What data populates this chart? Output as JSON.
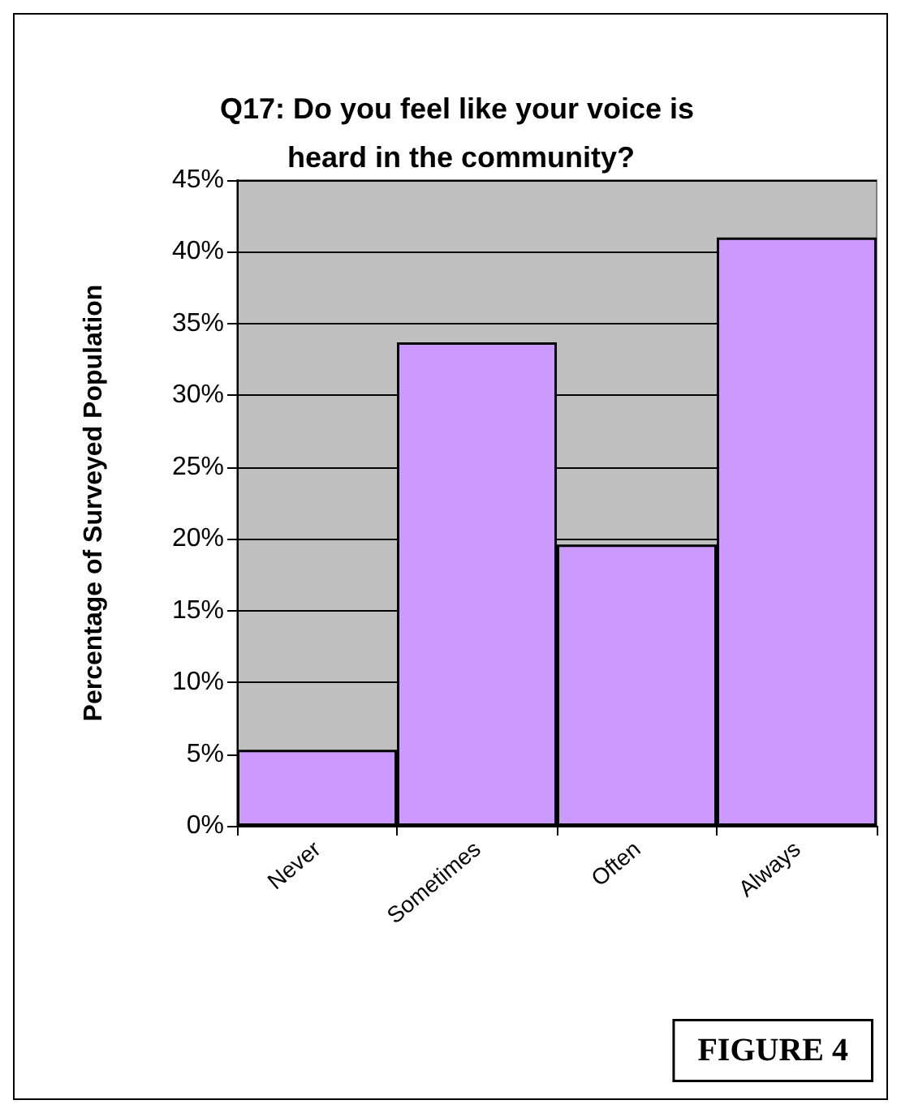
{
  "chart_data": {
    "type": "bar",
    "title": "Q17: Do you feel like your voice is heard in the community?",
    "ylabel": "Percentage of Surveyed Population",
    "categories": [
      "Never",
      "Sometimes",
      "Often",
      "Always"
    ],
    "values": [
      5.3,
      33.7,
      19.6,
      41.0
    ],
    "color": "#cc99ff",
    "ylim": [
      0,
      45
    ],
    "yticks": [
      {
        "value": 0,
        "label": "0%"
      },
      {
        "value": 5,
        "label": "5%"
      },
      {
        "value": 10,
        "label": "10%"
      },
      {
        "value": 15,
        "label": "15%"
      },
      {
        "value": 20,
        "label": "20%"
      },
      {
        "value": 25,
        "label": "25%"
      },
      {
        "value": 30,
        "label": "30%"
      },
      {
        "value": 35,
        "label": "35%"
      },
      {
        "value": 40,
        "label": "40%"
      },
      {
        "value": 45,
        "label": "45%"
      }
    ],
    "grid": "y",
    "annotations": [
      "FIGURE 4"
    ]
  }
}
